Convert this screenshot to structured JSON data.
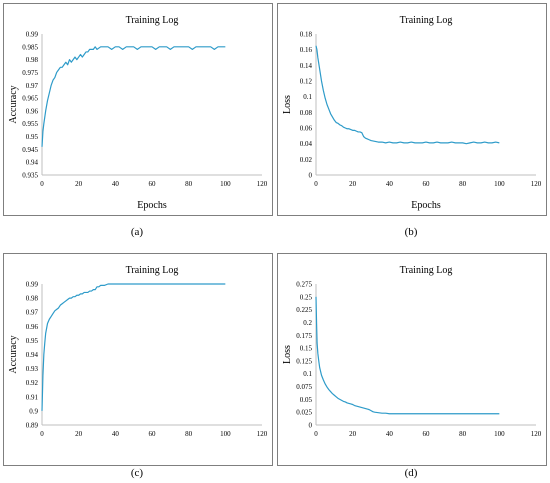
{
  "charts": [
    {
      "caption": "(a)",
      "chart_data": {
        "type": "line",
        "title": "Training Log",
        "xlabel": "Epochs",
        "ylabel": "Accuracy",
        "xlim": [
          0,
          120
        ],
        "ylim": [
          0.935,
          0.99
        ],
        "xticks": [
          0,
          20,
          40,
          60,
          80,
          100,
          120
        ],
        "yticks": [
          0.935,
          0.94,
          0.945,
          0.95,
          0.955,
          0.96,
          0.965,
          0.97,
          0.975,
          0.98,
          0.985,
          0.99
        ],
        "grid": false,
        "series": [
          {
            "color": "#2e9bc9",
            "x": [
              0,
              0.5,
              1,
              2,
              3,
              4,
              5,
              6,
              7,
              8,
              9,
              10,
              11,
              12,
              13,
              14,
              15,
              16,
              17,
              18,
              19,
              20,
              21,
              22,
              23,
              24,
              25,
              26,
              27,
              28,
              29,
              30,
              32,
              34,
              36,
              38,
              40,
              42,
              44,
              46,
              48,
              50,
              52,
              54,
              56,
              58,
              60,
              62,
              64,
              66,
              68,
              70,
              72,
              74,
              76,
              78,
              80,
              82,
              84,
              86,
              88,
              90,
              92,
              94,
              96,
              98,
              100
            ],
            "y": [
              0.946,
              0.952,
              0.955,
              0.96,
              0.964,
              0.967,
              0.97,
              0.972,
              0.973,
              0.975,
              0.976,
              0.977,
              0.977,
              0.978,
              0.979,
              0.978,
              0.98,
              0.979,
              0.98,
              0.981,
              0.98,
              0.981,
              0.982,
              0.981,
              0.982,
              0.983,
              0.983,
              0.984,
              0.984,
              0.984,
              0.985,
              0.984,
              0.985,
              0.985,
              0.985,
              0.984,
              0.985,
              0.985,
              0.984,
              0.985,
              0.985,
              0.985,
              0.984,
              0.985,
              0.985,
              0.985,
              0.985,
              0.984,
              0.985,
              0.985,
              0.985,
              0.984,
              0.985,
              0.985,
              0.985,
              0.985,
              0.985,
              0.984,
              0.985,
              0.985,
              0.985,
              0.985,
              0.985,
              0.984,
              0.985,
              0.985,
              0.985
            ]
          }
        ]
      }
    },
    {
      "caption": "(b)",
      "chart_data": {
        "type": "line",
        "title": "Training Log",
        "xlabel": "Epochs",
        "ylabel": "Loss",
        "xlim": [
          0,
          120
        ],
        "ylim": [
          0,
          0.18
        ],
        "xticks": [
          0,
          20,
          40,
          60,
          80,
          100,
          120
        ],
        "yticks": [
          0,
          0.02,
          0.04,
          0.06,
          0.08,
          0.1,
          0.12,
          0.14,
          0.16,
          0.18
        ],
        "grid": false,
        "series": [
          {
            "color": "#2e9bc9",
            "x": [
              0,
              0.5,
              1,
              2,
              3,
              4,
              5,
              6,
              7,
              8,
              9,
              10,
              11,
              12,
              13,
              14,
              15,
              16,
              17,
              18,
              19,
              20,
              21,
              22,
              23,
              24,
              25,
              26,
              27,
              28,
              29,
              30,
              32,
              34,
              36,
              38,
              40,
              42,
              44,
              46,
              48,
              50,
              52,
              54,
              56,
              58,
              60,
              62,
              64,
              66,
              68,
              70,
              72,
              74,
              76,
              78,
              80,
              82,
              84,
              86,
              88,
              90,
              92,
              94,
              96,
              98,
              100
            ],
            "y": [
              0.165,
              0.16,
              0.15,
              0.135,
              0.12,
              0.108,
              0.098,
              0.09,
              0.084,
              0.078,
              0.074,
              0.07,
              0.067,
              0.066,
              0.064,
              0.063,
              0.061,
              0.06,
              0.059,
              0.059,
              0.058,
              0.057,
              0.057,
              0.056,
              0.055,
              0.055,
              0.054,
              0.049,
              0.047,
              0.046,
              0.045,
              0.044,
              0.043,
              0.042,
              0.042,
              0.041,
              0.042,
              0.041,
              0.041,
              0.042,
              0.041,
              0.041,
              0.042,
              0.041,
              0.041,
              0.041,
              0.042,
              0.041,
              0.041,
              0.042,
              0.041,
              0.041,
              0.041,
              0.042,
              0.041,
              0.041,
              0.041,
              0.04,
              0.041,
              0.042,
              0.041,
              0.041,
              0.042,
              0.041,
              0.041,
              0.042,
              0.041
            ]
          }
        ]
      }
    },
    {
      "caption": "(c)",
      "chart_data": {
        "type": "line",
        "title": "Training Log",
        "xlabel": "",
        "ylabel": "Accuracy",
        "xlim": [
          0,
          120
        ],
        "ylim": [
          0.89,
          0.99
        ],
        "xticks": [
          0,
          20,
          40,
          60,
          80,
          100,
          120
        ],
        "yticks": [
          0.89,
          0.9,
          0.91,
          0.92,
          0.93,
          0.94,
          0.95,
          0.96,
          0.97,
          0.98,
          0.99
        ],
        "grid": false,
        "series": [
          {
            "color": "#2e9bc9",
            "x": [
              0,
              0.5,
              1,
              1.5,
              2,
              3,
              4,
              5,
              6,
              7,
              8,
              9,
              10,
              11,
              12,
              13,
              14,
              15,
              16,
              17,
              18,
              19,
              20,
              21,
              22,
              23,
              24,
              25,
              26,
              27,
              28,
              29,
              30,
              31,
              32,
              34,
              36,
              38,
              40,
              45,
              50,
              55,
              60,
              65,
              70,
              75,
              80,
              85,
              90,
              95,
              100
            ],
            "y": [
              0.9,
              0.925,
              0.94,
              0.948,
              0.955,
              0.962,
              0.965,
              0.967,
              0.969,
              0.971,
              0.972,
              0.973,
              0.975,
              0.976,
              0.977,
              0.978,
              0.979,
              0.98,
              0.98,
              0.981,
              0.981,
              0.982,
              0.982,
              0.983,
              0.983,
              0.984,
              0.984,
              0.984,
              0.985,
              0.985,
              0.986,
              0.986,
              0.988,
              0.988,
              0.989,
              0.989,
              0.99,
              0.99,
              0.99,
              0.99,
              0.99,
              0.99,
              0.99,
              0.99,
              0.99,
              0.99,
              0.99,
              0.99,
              0.99,
              0.99,
              0.99
            ]
          }
        ]
      }
    },
    {
      "caption": "(d)",
      "chart_data": {
        "type": "line",
        "title": "Training Log",
        "xlabel": "",
        "ylabel": "Loss",
        "xlim": [
          0,
          120
        ],
        "ylim": [
          0,
          0.275
        ],
        "xticks": [
          0,
          20,
          40,
          60,
          80,
          100,
          120
        ],
        "yticks": [
          0,
          0.025,
          0.05,
          0.075,
          0.1,
          0.125,
          0.15,
          0.175,
          0.2,
          0.225,
          0.25,
          0.275
        ],
        "grid": false,
        "series": [
          {
            "color": "#2e9bc9",
            "x": [
              0,
              0.3,
              0.6,
              1,
              1.5,
              2,
              3,
              4,
              5,
              6,
              7,
              8,
              9,
              10,
              11,
              12,
              13,
              14,
              15,
              16,
              17,
              18,
              19,
              20,
              21,
              22,
              23,
              24,
              25,
              26,
              27,
              28,
              29,
              30,
              31,
              32,
              34,
              36,
              38,
              40,
              45,
              50,
              55,
              60,
              65,
              70,
              75,
              80,
              85,
              90,
              95,
              100
            ],
            "y": [
              0.25,
              0.2,
              0.16,
              0.14,
              0.125,
              0.112,
              0.097,
              0.088,
              0.08,
              0.074,
              0.069,
              0.065,
              0.061,
              0.058,
              0.055,
              0.052,
              0.05,
              0.048,
              0.046,
              0.045,
              0.043,
              0.042,
              0.041,
              0.04,
              0.038,
              0.037,
              0.036,
              0.035,
              0.034,
              0.033,
              0.032,
              0.031,
              0.03,
              0.028,
              0.026,
              0.025,
              0.024,
              0.023,
              0.023,
              0.022,
              0.022,
              0.022,
              0.022,
              0.022,
              0.022,
              0.022,
              0.022,
              0.022,
              0.022,
              0.022,
              0.022,
              0.022
            ]
          }
        ]
      }
    }
  ]
}
